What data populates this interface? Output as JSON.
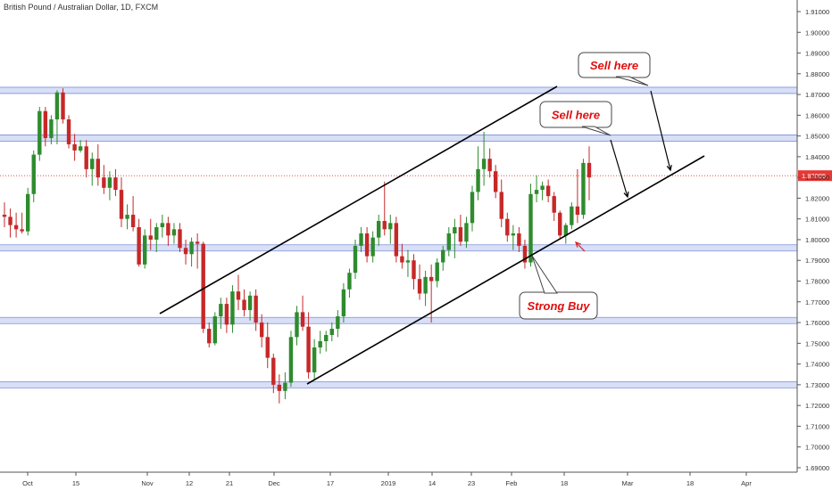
{
  "header": {
    "symbol_title": "British Pound / Australian Dollar, 1D, FXCM"
  },
  "price_label": "1.83085",
  "callouts": {
    "sell_1": "Sell here",
    "sell_2": "Sell here",
    "buy": "Strong Buy"
  },
  "colors": {
    "bull": "#2e8b2e",
    "bear": "#c62828",
    "zone": "#b8c4ee",
    "callout_text": "#e01010",
    "price_line": "#e53935"
  },
  "chart_data": {
    "type": "candlestick",
    "ylim": [
      1.685,
      1.915
    ],
    "y_ticks": [
      "1.91000",
      "1.90000",
      "1.89000",
      "1.88000",
      "1.87000",
      "1.86000",
      "1.85000",
      "1.84000",
      "1.83000",
      "1.82000",
      "1.81000",
      "1.80000",
      "1.79000",
      "1.78000",
      "1.77000",
      "1.76000",
      "1.75000",
      "1.74000",
      "1.73000",
      "1.72000",
      "1.71000",
      "1.70000",
      "1.69000"
    ],
    "x_ticks": [
      "Oct",
      "15",
      "Nov",
      "12",
      "21",
      "Dec",
      "17",
      "2019",
      "14",
      "23",
      "Feb",
      "18",
      "Mar",
      "18",
      "Apr"
    ],
    "support_resistance_levels": [
      1.872,
      1.849,
      1.796,
      1.761,
      1.73
    ],
    "last_price": 1.83085,
    "channel": {
      "upper": [
        [
          1.761,
          "Nov 24"
        ],
        [
          1.873,
          "Feb 5"
        ]
      ],
      "lower": [
        [
          1.728,
          "Dec 12"
        ],
        [
          1.839,
          "Mar 20"
        ]
      ]
    },
    "candles": [
      {
        "o": 1.812,
        "h": 1.818,
        "l": 1.806,
        "c": 1.811
      },
      {
        "o": 1.811,
        "h": 1.815,
        "l": 1.801,
        "c": 1.807
      },
      {
        "o": 1.807,
        "h": 1.813,
        "l": 1.801,
        "c": 1.805
      },
      {
        "o": 1.805,
        "h": 1.813,
        "l": 1.803,
        "c": 1.804
      },
      {
        "o": 1.804,
        "h": 1.825,
        "l": 1.802,
        "c": 1.822
      },
      {
        "o": 1.822,
        "h": 1.843,
        "l": 1.818,
        "c": 1.841
      },
      {
        "o": 1.841,
        "h": 1.864,
        "l": 1.838,
        "c": 1.862
      },
      {
        "o": 1.862,
        "h": 1.864,
        "l": 1.845,
        "c": 1.849
      },
      {
        "o": 1.849,
        "h": 1.86,
        "l": 1.846,
        "c": 1.858
      },
      {
        "o": 1.858,
        "h": 1.872,
        "l": 1.846,
        "c": 1.871
      },
      {
        "o": 1.871,
        "h": 1.873,
        "l": 1.856,
        "c": 1.858
      },
      {
        "o": 1.858,
        "h": 1.86,
        "l": 1.844,
        "c": 1.846
      },
      {
        "o": 1.846,
        "h": 1.851,
        "l": 1.838,
        "c": 1.843
      },
      {
        "o": 1.843,
        "h": 1.848,
        "l": 1.842,
        "c": 1.845
      },
      {
        "o": 1.845,
        "h": 1.848,
        "l": 1.83,
        "c": 1.834
      },
      {
        "o": 1.834,
        "h": 1.842,
        "l": 1.826,
        "c": 1.839
      },
      {
        "o": 1.839,
        "h": 1.846,
        "l": 1.826,
        "c": 1.83
      },
      {
        "o": 1.83,
        "h": 1.836,
        "l": 1.822,
        "c": 1.825
      },
      {
        "o": 1.825,
        "h": 1.833,
        "l": 1.819,
        "c": 1.83
      },
      {
        "o": 1.83,
        "h": 1.834,
        "l": 1.821,
        "c": 1.824
      },
      {
        "o": 1.824,
        "h": 1.83,
        "l": 1.806,
        "c": 1.81
      },
      {
        "o": 1.81,
        "h": 1.817,
        "l": 1.805,
        "c": 1.812
      },
      {
        "o": 1.812,
        "h": 1.821,
        "l": 1.804,
        "c": 1.806
      },
      {
        "o": 1.806,
        "h": 1.81,
        "l": 1.787,
        "c": 1.788
      },
      {
        "o": 1.788,
        "h": 1.805,
        "l": 1.786,
        "c": 1.802
      },
      {
        "o": 1.802,
        "h": 1.81,
        "l": 1.795,
        "c": 1.8
      },
      {
        "o": 1.8,
        "h": 1.808,
        "l": 1.794,
        "c": 1.806
      },
      {
        "o": 1.806,
        "h": 1.812,
        "l": 1.801,
        "c": 1.808
      },
      {
        "o": 1.808,
        "h": 1.811,
        "l": 1.797,
        "c": 1.802
      },
      {
        "o": 1.802,
        "h": 1.808,
        "l": 1.798,
        "c": 1.805
      },
      {
        "o": 1.805,
        "h": 1.808,
        "l": 1.794,
        "c": 1.796
      },
      {
        "o": 1.796,
        "h": 1.8,
        "l": 1.788,
        "c": 1.793
      },
      {
        "o": 1.793,
        "h": 1.801,
        "l": 1.787,
        "c": 1.799
      },
      {
        "o": 1.799,
        "h": 1.803,
        "l": 1.786,
        "c": 1.798
      },
      {
        "o": 1.798,
        "h": 1.799,
        "l": 1.755,
        "c": 1.757
      },
      {
        "o": 1.757,
        "h": 1.76,
        "l": 1.748,
        "c": 1.75
      },
      {
        "o": 1.75,
        "h": 1.765,
        "l": 1.749,
        "c": 1.763
      },
      {
        "o": 1.763,
        "h": 1.772,
        "l": 1.757,
        "c": 1.769
      },
      {
        "o": 1.769,
        "h": 1.772,
        "l": 1.755,
        "c": 1.759
      },
      {
        "o": 1.759,
        "h": 1.778,
        "l": 1.755,
        "c": 1.775
      },
      {
        "o": 1.775,
        "h": 1.783,
        "l": 1.766,
        "c": 1.771
      },
      {
        "o": 1.771,
        "h": 1.776,
        "l": 1.763,
        "c": 1.766
      },
      {
        "o": 1.766,
        "h": 1.775,
        "l": 1.761,
        "c": 1.773
      },
      {
        "o": 1.773,
        "h": 1.776,
        "l": 1.756,
        "c": 1.76
      },
      {
        "o": 1.76,
        "h": 1.764,
        "l": 1.748,
        "c": 1.753
      },
      {
        "o": 1.753,
        "h": 1.76,
        "l": 1.738,
        "c": 1.743
      },
      {
        "o": 1.743,
        "h": 1.745,
        "l": 1.726,
        "c": 1.73
      },
      {
        "o": 1.73,
        "h": 1.735,
        "l": 1.721,
        "c": 1.727
      },
      {
        "o": 1.727,
        "h": 1.736,
        "l": 1.723,
        "c": 1.731
      },
      {
        "o": 1.731,
        "h": 1.756,
        "l": 1.729,
        "c": 1.753
      },
      {
        "o": 1.753,
        "h": 1.768,
        "l": 1.749,
        "c": 1.765
      },
      {
        "o": 1.765,
        "h": 1.773,
        "l": 1.756,
        "c": 1.758
      },
      {
        "o": 1.758,
        "h": 1.765,
        "l": 1.733,
        "c": 1.736
      },
      {
        "o": 1.736,
        "h": 1.752,
        "l": 1.732,
        "c": 1.748
      },
      {
        "o": 1.748,
        "h": 1.756,
        "l": 1.745,
        "c": 1.751
      },
      {
        "o": 1.751,
        "h": 1.756,
        "l": 1.746,
        "c": 1.754
      },
      {
        "o": 1.754,
        "h": 1.76,
        "l": 1.751,
        "c": 1.757
      },
      {
        "o": 1.757,
        "h": 1.766,
        "l": 1.753,
        "c": 1.763
      },
      {
        "o": 1.763,
        "h": 1.779,
        "l": 1.76,
        "c": 1.776
      },
      {
        "o": 1.776,
        "h": 1.786,
        "l": 1.772,
        "c": 1.784
      },
      {
        "o": 1.784,
        "h": 1.8,
        "l": 1.781,
        "c": 1.797
      },
      {
        "o": 1.797,
        "h": 1.806,
        "l": 1.794,
        "c": 1.803
      },
      {
        "o": 1.803,
        "h": 1.806,
        "l": 1.789,
        "c": 1.792
      },
      {
        "o": 1.792,
        "h": 1.804,
        "l": 1.789,
        "c": 1.801
      },
      {
        "o": 1.801,
        "h": 1.812,
        "l": 1.797,
        "c": 1.809
      },
      {
        "o": 1.809,
        "h": 1.828,
        "l": 1.802,
        "c": 1.805
      },
      {
        "o": 1.805,
        "h": 1.812,
        "l": 1.798,
        "c": 1.808
      },
      {
        "o": 1.808,
        "h": 1.811,
        "l": 1.789,
        "c": 1.792
      },
      {
        "o": 1.792,
        "h": 1.798,
        "l": 1.786,
        "c": 1.789
      },
      {
        "o": 1.789,
        "h": 1.795,
        "l": 1.782,
        "c": 1.79
      },
      {
        "o": 1.79,
        "h": 1.793,
        "l": 1.776,
        "c": 1.781
      },
      {
        "o": 1.781,
        "h": 1.788,
        "l": 1.771,
        "c": 1.774
      },
      {
        "o": 1.774,
        "h": 1.785,
        "l": 1.768,
        "c": 1.782
      },
      {
        "o": 1.782,
        "h": 1.788,
        "l": 1.76,
        "c": 1.78
      },
      {
        "o": 1.78,
        "h": 1.791,
        "l": 1.777,
        "c": 1.789
      },
      {
        "o": 1.789,
        "h": 1.797,
        "l": 1.785,
        "c": 1.795
      },
      {
        "o": 1.795,
        "h": 1.806,
        "l": 1.792,
        "c": 1.803
      },
      {
        "o": 1.803,
        "h": 1.81,
        "l": 1.791,
        "c": 1.806
      },
      {
        "o": 1.806,
        "h": 1.812,
        "l": 1.797,
        "c": 1.799
      },
      {
        "o": 1.799,
        "h": 1.811,
        "l": 1.796,
        "c": 1.808
      },
      {
        "o": 1.808,
        "h": 1.826,
        "l": 1.804,
        "c": 1.823
      },
      {
        "o": 1.823,
        "h": 1.845,
        "l": 1.819,
        "c": 1.834
      },
      {
        "o": 1.834,
        "h": 1.852,
        "l": 1.826,
        "c": 1.839
      },
      {
        "o": 1.839,
        "h": 1.844,
        "l": 1.83,
        "c": 1.833
      },
      {
        "o": 1.833,
        "h": 1.836,
        "l": 1.82,
        "c": 1.823
      },
      {
        "o": 1.823,
        "h": 1.829,
        "l": 1.806,
        "c": 1.81
      },
      {
        "o": 1.81,
        "h": 1.813,
        "l": 1.799,
        "c": 1.802
      },
      {
        "o": 1.802,
        "h": 1.807,
        "l": 1.795,
        "c": 1.803
      },
      {
        "o": 1.803,
        "h": 1.806,
        "l": 1.794,
        "c": 1.797
      },
      {
        "o": 1.797,
        "h": 1.8,
        "l": 1.786,
        "c": 1.789
      },
      {
        "o": 1.789,
        "h": 1.827,
        "l": 1.787,
        "c": 1.822
      },
      {
        "o": 1.822,
        "h": 1.831,
        "l": 1.818,
        "c": 1.824
      },
      {
        "o": 1.824,
        "h": 1.828,
        "l": 1.819,
        "c": 1.826
      },
      {
        "o": 1.826,
        "h": 1.829,
        "l": 1.818,
        "c": 1.821
      },
      {
        "o": 1.821,
        "h": 1.823,
        "l": 1.809,
        "c": 1.813
      },
      {
        "o": 1.813,
        "h": 1.814,
        "l": 1.8,
        "c": 1.802
      },
      {
        "o": 1.802,
        "h": 1.808,
        "l": 1.798,
        "c": 1.807
      },
      {
        "o": 1.807,
        "h": 1.818,
        "l": 1.805,
        "c": 1.816
      },
      {
        "o": 1.816,
        "h": 1.834,
        "l": 1.808,
        "c": 1.812
      },
      {
        "o": 1.812,
        "h": 1.839,
        "l": 1.81,
        "c": 1.837
      },
      {
        "o": 1.837,
        "h": 1.845,
        "l": 1.819,
        "c": 1.83
      }
    ]
  }
}
